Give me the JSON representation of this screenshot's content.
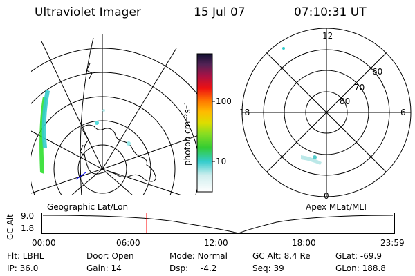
{
  "header": {
    "title": "Ultraviolet Imager",
    "date": "15 Jul 07",
    "time": "07:10:31 UT"
  },
  "colorbar": {
    "label": "photon cm⁻²s⁻¹",
    "ticks": [
      "100",
      "10"
    ]
  },
  "left_map": {
    "caption": "Geographic Lat/Lon"
  },
  "right_map": {
    "caption": "Apex MLat/MLT",
    "mlt_labels": [
      "12",
      "18",
      "6",
      "0"
    ],
    "mlat_labels": [
      "60",
      "70",
      "80"
    ]
  },
  "timeline": {
    "ylabel": "GC Alt",
    "y_ticks": [
      "9.0",
      "1.8"
    ],
    "x_ticks": [
      "00:00",
      "06:00",
      "12:00",
      "18:00",
      "23:59"
    ],
    "cursor_time": "07:10:31",
    "cursor_color": "#ff0000"
  },
  "info": {
    "filter": "Flt: LBHL",
    "ip": "IP: 36.0",
    "door": "Door: Open",
    "gain": "Gain: 14",
    "mode": "Mode: Normal",
    "dsp_label": "Dsp:",
    "dsp_value": "-4.2",
    "gc_alt": "GC Alt: 8.4 Re",
    "seq": "Seq: 39",
    "glat": "GLat: -69.9",
    "glon": "GLon: 188.8"
  }
}
